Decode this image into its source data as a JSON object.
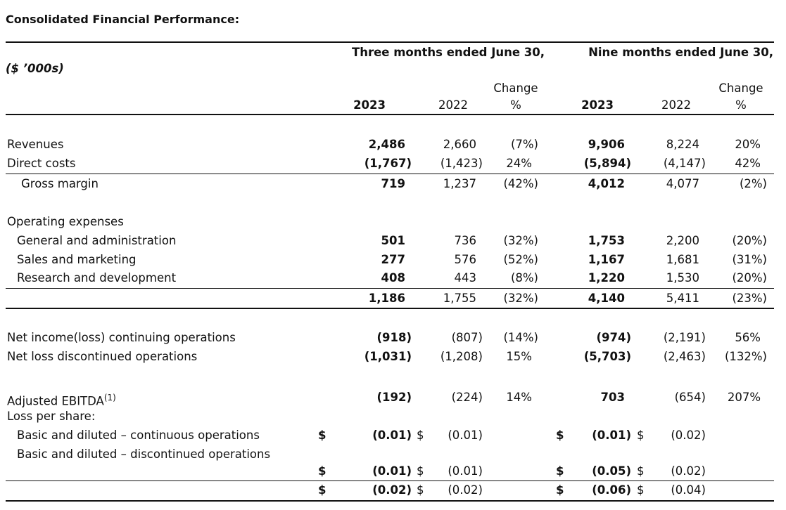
{
  "title": "Consolidated Financial Performance:",
  "unit_label": "($ ’000s)",
  "periods": [
    {
      "heading": "Three months ended June 30,",
      "years": [
        "2023",
        "2022"
      ],
      "change": "Change %"
    },
    {
      "heading": "Nine months ended June 30,",
      "years": [
        "2023",
        "2022"
      ],
      "change": "Change %"
    }
  ],
  "rows": [
    {
      "label": "Revenues",
      "values": [
        "2,486",
        "2,660",
        "(7%)",
        "9,906",
        "8,224",
        "20%"
      ]
    },
    {
      "label": "Direct costs",
      "values": [
        "(1,767)",
        "(1,423)",
        "24%",
        "(5,894)",
        "(4,147)",
        "42%"
      ]
    },
    {
      "label": "Gross margin",
      "values": [
        "719",
        "1,237",
        "(42%)",
        "4,012",
        "4,077",
        "(2%)"
      ]
    },
    {
      "label": "Operating expenses"
    },
    {
      "label": "General and administration",
      "values": [
        "501",
        "736",
        "(32%)",
        "1,753",
        "2,200",
        "(20%)"
      ]
    },
    {
      "label": "Sales and marketing",
      "values": [
        "277",
        "576",
        "(52%)",
        "1,167",
        "1,681",
        "(31%)"
      ]
    },
    {
      "label": "Research and development",
      "values": [
        "408",
        "443",
        "(8%)",
        "1,220",
        "1,530",
        "(20%)"
      ]
    },
    {
      "values": [
        "1,186",
        "1,755",
        "(32%)",
        "4,140",
        "5,411",
        "(23%)"
      ]
    },
    {
      "label": "Net income(loss) continuing operations",
      "values": [
        "(918)",
        "(807)",
        "(14%)",
        "(974)",
        "(2,191)",
        "56%"
      ]
    },
    {
      "label": "Net loss discontinued operations",
      "values": [
        "(1,031)",
        "(1,208)",
        "15%",
        "(5,703)",
        "(2,463)",
        "(132%)"
      ]
    },
    {
      "label": "Adjusted EBITDA",
      "footnote": "(1)",
      "values": [
        "(192)",
        "(224)",
        "14%",
        "703",
        "(654)",
        "207%"
      ]
    },
    {
      "label": "Loss per share:"
    },
    {
      "label": "Basic and diluted – continuous operations",
      "dollar_signs": [
        "$",
        "$",
        "$",
        "$"
      ],
      "values": [
        "(0.01)",
        "(0.01)",
        "(0.01)",
        "(0.02)"
      ]
    },
    {
      "label": "Basic and diluted – discontinued operations",
      "dollar_signs": [
        "$",
        "$",
        "$",
        "$"
      ],
      "values": [
        "(0.01)",
        "(0.01)",
        "(0.05)",
        "(0.02)"
      ]
    },
    {
      "dollar_signs": [
        "$",
        "$",
        "$",
        "$"
      ],
      "values": [
        "(0.02)",
        "(0.02)",
        "(0.06)",
        "(0.04)"
      ]
    }
  ]
}
